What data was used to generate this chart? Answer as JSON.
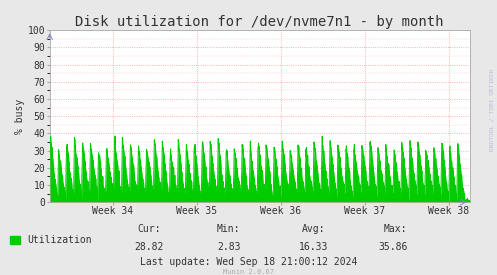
{
  "title": "Disk utilization for /dev/nvme7n1 - by month",
  "ylabel": "% busy",
  "x_tick_labels": [
    "Week 34",
    "Week 35",
    "Week 36",
    "Week 37",
    "Week 38"
  ],
  "ylim": [
    0,
    100
  ],
  "yticks": [
    0,
    10,
    20,
    30,
    40,
    50,
    60,
    70,
    80,
    90,
    100
  ],
  "line_color": "#00CC00",
  "fill_color": "#00CC00",
  "fig_bg_color": "#E8E8E8",
  "plot_bg_color": "#FFFFFF",
  "grid_color": "#FF9999",
  "legend_label": "Utilization",
  "legend_color": "#00CC00",
  "cur_label": "Cur:",
  "cur_val": "28.82",
  "min_label": "Min:",
  "min_val": "2.83",
  "avg_label": "Avg:",
  "avg_val": "16.33",
  "max_label": "Max:",
  "max_val": "35.86",
  "last_update": "Last update: Wed Sep 18 21:00:12 2024",
  "munin_version": "Munin 2.0.67",
  "rrdtool_text": "RRDTOOL / TOBI OETIKER",
  "title_fontsize": 10,
  "axis_label_fontsize": 7,
  "tick_fontsize": 7,
  "stats_fontsize": 7,
  "num_cycles": 52,
  "peak_value": 33,
  "trough_value": 2
}
